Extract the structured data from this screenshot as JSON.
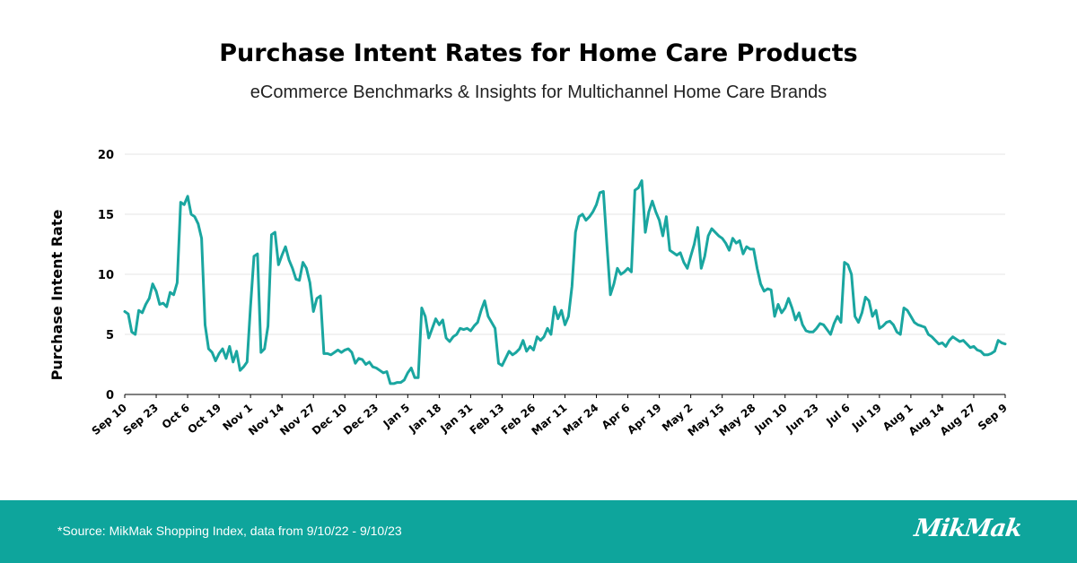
{
  "header": {
    "title": "Purchase Intent Rates for Home Care Products",
    "subtitle": "eCommerce Benchmarks & Insights for Multichannel Home Care Brands"
  },
  "footer": {
    "source": "*Source: MikMak Shopping Index, data from 9/10/22 - 9/10/23",
    "logo_text": "MikMak"
  },
  "colors": {
    "line": "#1aa6a0",
    "footer_bg": "#0ea59c",
    "grid": "#e6e6e6"
  },
  "chart_data": {
    "type": "line",
    "title": "Purchase Intent Rates for Home Care Products",
    "subtitle": "eCommerce Benchmarks & Insights for Multichannel Home Care Brands",
    "xlabel": "",
    "ylabel": "Purchase Intent Rate",
    "ylim": [
      0,
      20
    ],
    "yticks": [
      0,
      5,
      10,
      15,
      20
    ],
    "grid": "horizontal",
    "xticks": [
      "Sep 10",
      "Sep 23",
      "Oct 6",
      "Oct 19",
      "Nov 1",
      "Nov 14",
      "Nov 27",
      "Dec 10",
      "Dec 23",
      "Jan 5",
      "Jan 18",
      "Jan 31",
      "Feb 13",
      "Feb 26",
      "Mar 11",
      "Mar 24",
      "Apr 6",
      "Apr 19",
      "May 2",
      "May 15",
      "May 28",
      "Jun 10",
      "Jun 23",
      "Jul 6",
      "Jul 19",
      "Aug 1",
      "Aug 14",
      "Aug 27",
      "Sep 9"
    ],
    "series": [
      {
        "values": [
          6.9,
          6.7,
          5.2,
          5.0,
          7.0,
          6.8,
          7.5,
          8.0,
          9.2,
          8.6,
          7.5,
          7.6,
          7.3,
          8.5,
          8.3,
          9.3,
          16.0,
          15.8,
          16.5,
          15.0,
          14.8,
          14.2,
          13.0,
          5.8,
          3.8,
          3.5,
          2.8,
          3.4,
          3.8,
          3.0,
          4.0,
          2.7,
          3.6,
          2.0,
          2.3,
          2.7,
          7.3,
          11.5,
          11.7,
          3.5,
          3.8,
          5.7,
          13.3,
          13.5,
          10.8,
          11.6,
          12.3,
          11.2,
          10.5,
          9.6,
          9.5,
          11.0,
          10.5,
          9.3,
          6.9,
          8.0,
          8.2,
          3.4,
          3.4,
          3.3,
          3.5,
          3.7,
          3.5,
          3.7,
          3.8,
          3.5,
          2.6,
          3.0,
          2.9,
          2.5,
          2.7,
          2.3,
          2.2,
          2.0,
          1.8,
          1.9,
          0.9,
          0.9,
          1.0,
          1.0,
          1.2,
          1.8,
          2.2,
          1.4,
          1.4,
          7.2,
          6.5,
          4.7,
          5.5,
          6.3,
          5.8,
          6.2,
          4.7,
          4.4,
          4.8,
          5.0,
          5.5,
          5.4,
          5.5,
          5.3,
          5.7,
          6.0,
          7.0,
          7.8,
          6.5,
          6.0,
          5.5,
          2.6,
          2.4,
          3.0,
          3.6,
          3.3,
          3.5,
          3.8,
          4.5,
          3.6,
          4.0,
          3.7,
          4.8,
          4.5,
          4.8,
          5.5,
          5.0,
          7.3,
          6.3,
          7.0,
          5.8,
          6.5,
          9.0,
          13.5,
          14.8,
          15.0,
          14.5,
          14.8,
          15.2,
          15.8,
          16.8,
          16.9,
          12.5,
          8.3,
          9.2,
          10.5,
          10.0,
          10.2,
          10.5,
          10.2,
          17.0,
          17.2,
          17.8,
          13.5,
          15.2,
          16.1,
          15.2,
          14.5,
          13.2,
          14.8,
          12.0,
          11.8,
          11.6,
          11.8,
          11.0,
          10.5,
          11.5,
          12.5,
          13.9,
          10.5,
          11.5,
          13.2,
          13.8,
          13.5,
          13.2,
          13.0,
          12.6,
          12.0,
          13.0,
          12.6,
          12.8,
          11.7,
          12.3,
          12.1,
          12.1,
          10.5,
          9.2,
          8.6,
          8.8,
          8.7,
          6.5,
          7.5,
          6.8,
          7.2,
          8.0,
          7.2,
          6.2,
          6.8,
          5.8,
          5.3,
          5.2,
          5.2,
          5.5,
          5.9,
          5.8,
          5.4,
          5.0,
          5.9,
          6.5,
          6.0,
          11.0,
          10.8,
          10.0,
          6.5,
          6.0,
          6.8,
          8.1,
          7.8,
          6.5,
          7.0,
          5.5,
          5.7,
          6.0,
          6.1,
          5.8,
          5.2,
          5.0,
          7.2,
          7.0,
          6.5,
          6.0,
          5.8,
          5.7,
          5.6,
          5.0,
          4.8,
          4.5,
          4.2,
          4.3,
          4.0,
          4.5,
          4.8,
          4.6,
          4.4,
          4.5,
          4.2,
          3.9,
          4.0,
          3.7,
          3.6,
          3.3,
          3.3,
          3.4,
          3.6,
          4.5,
          4.3,
          4.2
        ]
      }
    ]
  }
}
